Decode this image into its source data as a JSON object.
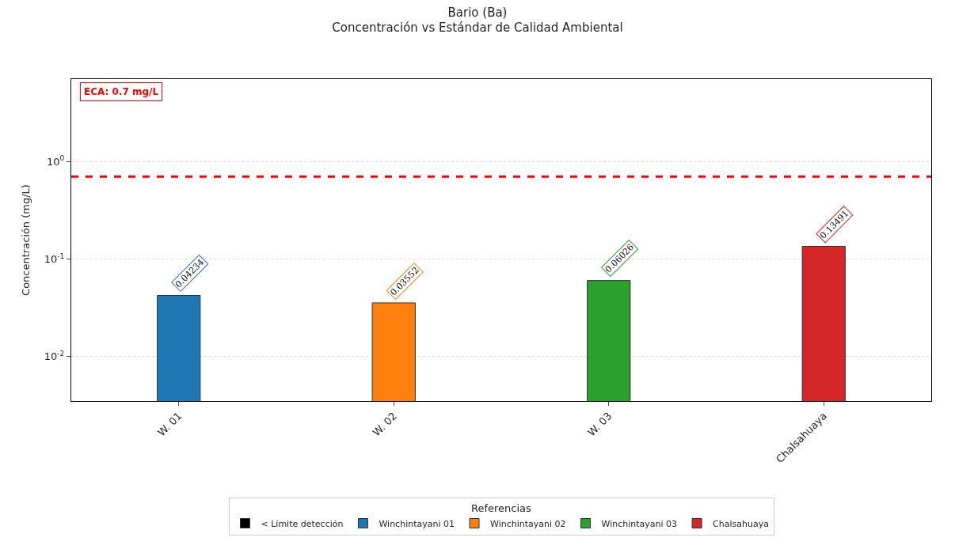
{
  "chart_data": {
    "type": "bar",
    "title": "Bario (Ba)",
    "subtitle": "Concentración vs Estándar de Calidad Ambiental",
    "ylabel": "Concentración (mg/L)",
    "legend_title": "Referencias",
    "categories": [
      "W. 01",
      "W. 02",
      "W. 03",
      "Chalsahuaya"
    ],
    "series": [
      {
        "name": "< Límite detección",
        "color": "#000000",
        "values": [
          null,
          null,
          null,
          null
        ]
      },
      {
        "name": "Winchintayani 01",
        "color": "#1f77b4",
        "values": [
          0.04234,
          null,
          null,
          null
        ]
      },
      {
        "name": "Winchintayani 02",
        "color": "#ff7f0e",
        "values": [
          null,
          0.03552,
          null,
          null
        ]
      },
      {
        "name": "Winchintayani 03",
        "color": "#2ca02c",
        "values": [
          null,
          null,
          0.06026,
          null
        ]
      },
      {
        "name": "Chalsahuaya",
        "color": "#d62728",
        "values": [
          null,
          null,
          null,
          0.13491
        ]
      }
    ],
    "log": "y",
    "ylim": [
      0.0035,
      7
    ],
    "yticks": [
      {
        "value": 0.01,
        "label": "10$^{-2}$"
      },
      {
        "value": 0.1,
        "label": "10$^{-1}$"
      },
      {
        "value": 1,
        "label": "10$^{0}$"
      }
    ],
    "ref_lines": [
      {
        "axis": "y",
        "value": 0.7,
        "label": "ECA: 0.7 mg/L",
        "color": "#ff0000",
        "line_style": "dashed"
      }
    ],
    "data_labels": true,
    "grid": "y",
    "legend": "bottom"
  }
}
